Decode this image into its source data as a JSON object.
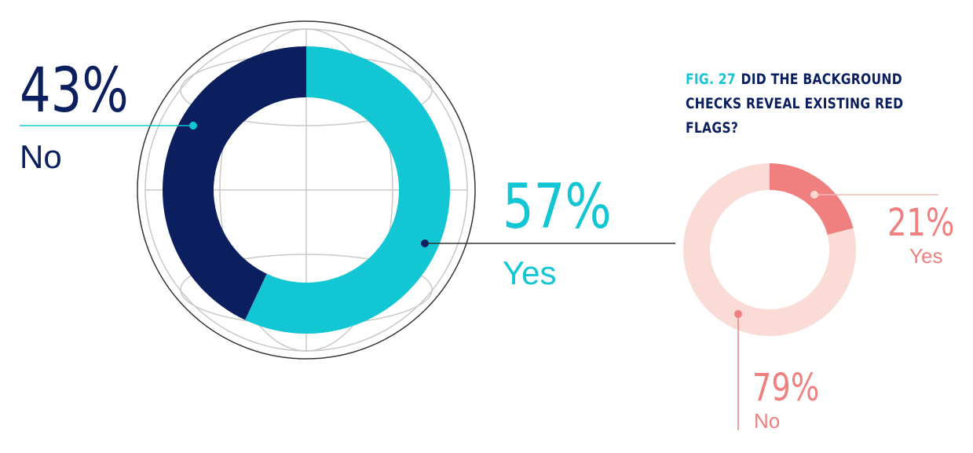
{
  "figure": {
    "label": "FIG. 27",
    "title": "DID THE BACKGROUND CHECKS REVEAL EXISTING RED FLAGS?"
  },
  "chart_data": [
    {
      "type": "donut",
      "categories": [
        "No",
        "Yes"
      ],
      "values": [
        43,
        57
      ],
      "value_labels": [
        "43%",
        "57%"
      ],
      "colors": [
        "#0b1f5e",
        "#13c6d3"
      ]
    },
    {
      "type": "donut",
      "categories": [
        "Yes",
        "No"
      ],
      "values": [
        21,
        79
      ],
      "value_labels": [
        "21%",
        "79%"
      ],
      "colors": [
        "#f07f7f",
        "#fadbd6"
      ]
    }
  ]
}
